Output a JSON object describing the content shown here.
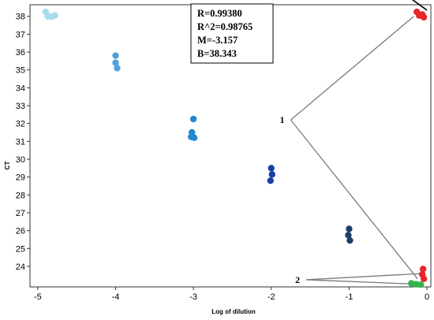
{
  "chart_data": {
    "type": "scatter",
    "xlabel": "Log of dilution",
    "ylabel": "CT",
    "xlim": [
      -5.1,
      0.05
    ],
    "ylim": [
      22.85,
      38.65
    ],
    "x_ticks": [
      -5,
      -4,
      -3,
      -2,
      -1,
      0
    ],
    "y_ticks": [
      24,
      25,
      26,
      27,
      28,
      29,
      30,
      31,
      32,
      33,
      34,
      35,
      36,
      37,
      38
    ],
    "grid": false,
    "fit_line": {
      "slope": -3.157,
      "intercept": 38.343
    },
    "stats": [
      "R=0.99380",
      "R^2=0.98765",
      "M=-3.157",
      "B=38.343"
    ],
    "series": [
      {
        "color": "#a6dcef",
        "points": [
          [
            -4.9,
            38.25
          ],
          [
            -4.87,
            38.0
          ],
          [
            -4.82,
            37.98
          ],
          [
            -4.78,
            38.05
          ]
        ]
      },
      {
        "color": "#4aa3d8",
        "points": [
          [
            -4.0,
            35.8
          ],
          [
            -4.0,
            35.4
          ],
          [
            -3.98,
            35.1
          ]
        ]
      },
      {
        "color": "#2488cf",
        "points": [
          [
            -3.0,
            32.25
          ],
          [
            -3.02,
            31.5
          ],
          [
            -3.03,
            31.25
          ],
          [
            -2.99,
            31.2
          ]
        ]
      },
      {
        "color": "#1a3ea6",
        "points": [
          [
            -2.0,
            29.5
          ],
          [
            -1.99,
            29.15
          ],
          [
            -2.01,
            28.8
          ]
        ]
      },
      {
        "color": "#1c3f6a",
        "points": [
          [
            -1.0,
            26.1
          ],
          [
            -1.01,
            25.75
          ],
          [
            -0.99,
            25.45
          ]
        ]
      },
      {
        "color": "#e8262b",
        "points": [
          [
            -0.13,
            38.25
          ],
          [
            -0.1,
            38.05
          ],
          [
            -0.06,
            38.1
          ],
          [
            -0.04,
            37.95
          ],
          [
            -0.05,
            23.85
          ],
          [
            -0.06,
            23.55
          ],
          [
            -0.04,
            23.3
          ]
        ]
      },
      {
        "color": "#35b34a",
        "points": [
          [
            -0.2,
            23.05
          ],
          [
            -0.14,
            23.0
          ],
          [
            -0.08,
            22.98
          ]
        ]
      }
    ],
    "annotations": [
      {
        "label": "1",
        "anchor": [
          -1.75,
          32.2
        ],
        "targets": [
          [
            -0.17,
            38.0
          ],
          [
            -0.12,
            23.3
          ]
        ]
      },
      {
        "label": "2",
        "anchor": [
          -1.55,
          23.25
        ],
        "targets": [
          [
            -0.05,
            23.6
          ],
          [
            -0.1,
            23.0
          ]
        ]
      }
    ]
  }
}
